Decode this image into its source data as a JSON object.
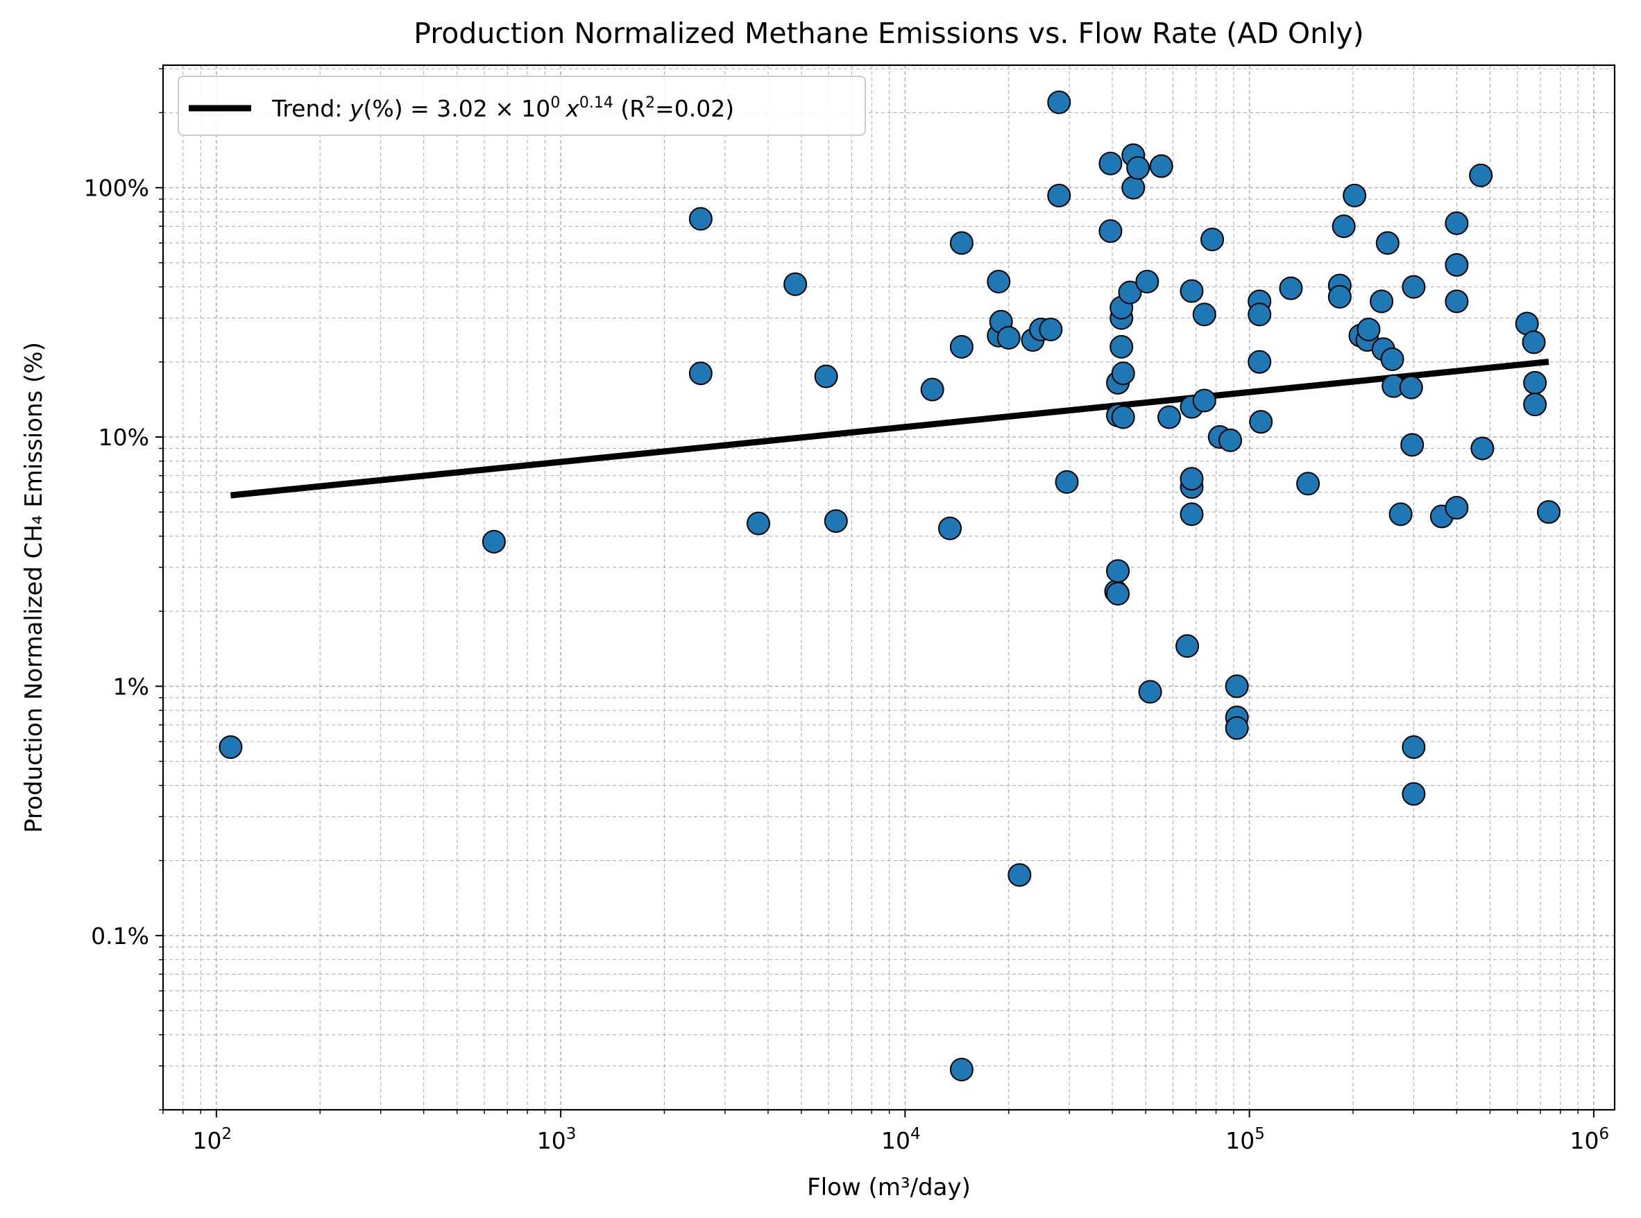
{
  "chart_data": {
    "type": "scatter",
    "title": "Production Normalized Methane Emissions vs. Flow Rate (AD Only)",
    "xlabel": "Flow (m³/day)",
    "ylabel": "Production Normalized CH₄ Emissions (%)",
    "xscale": "log",
    "yscale": "log",
    "xlim": [
      70,
      1150000
    ],
    "ylim": [
      0.02,
      310
    ],
    "grid": true,
    "legend_location": "upper-left",
    "x_ticks": [
      {
        "value": 100,
        "base": "10",
        "exp": "2"
      },
      {
        "value": 1000,
        "base": "10",
        "exp": "3"
      },
      {
        "value": 10000,
        "base": "10",
        "exp": "4"
      },
      {
        "value": 100000,
        "base": "10",
        "exp": "5"
      },
      {
        "value": 1000000,
        "base": "10",
        "exp": "6"
      }
    ],
    "y_ticks": [
      {
        "value": 0.1,
        "label": "0.1%"
      },
      {
        "value": 1,
        "label": "1%"
      },
      {
        "value": 10,
        "label": "10%"
      },
      {
        "value": 100,
        "label": "100%"
      }
    ],
    "colors": {
      "points": "#1f77b4",
      "point_edge": "#000000",
      "trend": "#000000",
      "grid": "#b0b0b0"
    },
    "trend": {
      "label_parts": {
        "prefix": "Trend: ",
        "y": "y",
        "paren": "(%) = 3.02 × 10",
        "sup0": "0",
        "x": "x",
        "sup1": "0.14",
        "r2a": " (R",
        "sup2": "2",
        "r2b": "=0.02)"
      },
      "coef": 3.02,
      "exponent": 0.14,
      "x_range": [
        110,
        740000
      ]
    },
    "series": [
      {
        "points": [
          [
            110,
            0.57
          ],
          [
            640,
            3.8
          ],
          [
            2550,
            75
          ],
          [
            2550,
            18
          ],
          [
            3750,
            4.5
          ],
          [
            4800,
            41
          ],
          [
            5900,
            17.5
          ],
          [
            6300,
            4.6
          ],
          [
            12000,
            15.5
          ],
          [
            13500,
            4.3
          ],
          [
            14600,
            60
          ],
          [
            14600,
            23
          ],
          [
            14600,
            0.029
          ],
          [
            18700,
            42
          ],
          [
            18700,
            25.5
          ],
          [
            19000,
            29
          ],
          [
            20000,
            25
          ],
          [
            21500,
            0.175
          ],
          [
            23500,
            24.5
          ],
          [
            24800,
            27
          ],
          [
            26500,
            27
          ],
          [
            28000,
            220
          ],
          [
            28000,
            93
          ],
          [
            29500,
            6.6
          ],
          [
            39500,
            125
          ],
          [
            39500,
            67
          ],
          [
            41000,
            2.4
          ],
          [
            41500,
            2.9
          ],
          [
            41500,
            2.35
          ],
          [
            41500,
            16.5
          ],
          [
            41500,
            12.2
          ],
          [
            42500,
            30
          ],
          [
            42500,
            33
          ],
          [
            42500,
            23
          ],
          [
            43000,
            18
          ],
          [
            43000,
            12
          ],
          [
            45000,
            38
          ],
          [
            46000,
            135
          ],
          [
            46000,
            100
          ],
          [
            47500,
            120
          ],
          [
            50500,
            42
          ],
          [
            51500,
            0.95
          ],
          [
            55500,
            122
          ],
          [
            58500,
            12
          ],
          [
            66000,
            1.45
          ],
          [
            68000,
            38.5
          ],
          [
            68000,
            13.2
          ],
          [
            68000,
            6.3
          ],
          [
            68000,
            6.8
          ],
          [
            68000,
            4.9
          ],
          [
            74000,
            31
          ],
          [
            74000,
            14
          ],
          [
            78000,
            62
          ],
          [
            82000,
            10
          ],
          [
            88000,
            9.7
          ],
          [
            92000,
            1.0
          ],
          [
            92000,
            0.75
          ],
          [
            92000,
            0.68
          ],
          [
            107000,
            35
          ],
          [
            107000,
            31
          ],
          [
            107000,
            20
          ],
          [
            108000,
            11.5
          ],
          [
            132000,
            39.5
          ],
          [
            148000,
            6.5
          ],
          [
            183000,
            40.5
          ],
          [
            183000,
            36.5
          ],
          [
            188000,
            70
          ],
          [
            202000,
            93
          ],
          [
            210000,
            25.5
          ],
          [
            220000,
            24.5
          ],
          [
            222000,
            27
          ],
          [
            242000,
            35
          ],
          [
            245000,
            22.5
          ],
          [
            252000,
            60
          ],
          [
            260000,
            20.5
          ],
          [
            262000,
            16
          ],
          [
            275000,
            4.9
          ],
          [
            295000,
            15.8
          ],
          [
            297000,
            9.3
          ],
          [
            300000,
            40
          ],
          [
            300000,
            0.57
          ],
          [
            300000,
            0.37
          ],
          [
            362000,
            4.8
          ],
          [
            400000,
            72
          ],
          [
            400000,
            49
          ],
          [
            400000,
            35
          ],
          [
            400000,
            5.2
          ],
          [
            470000,
            112
          ],
          [
            475000,
            9
          ],
          [
            640000,
            28.5
          ],
          [
            670000,
            24
          ],
          [
            675000,
            16.5
          ],
          [
            675000,
            13.5
          ],
          [
            740000,
            5
          ]
        ]
      }
    ]
  }
}
